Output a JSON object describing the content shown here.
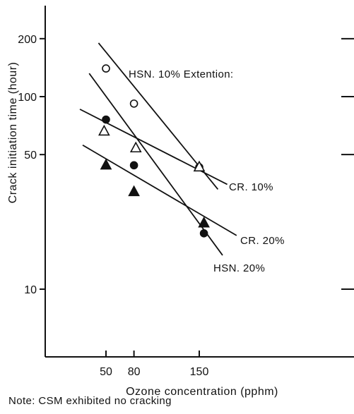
{
  "chart_data": {
    "type": "line",
    "title": "",
    "xlabel": "Ozone concentration (pphm)",
    "ylabel": "Crack initiation time (hour)",
    "y_scale": "log",
    "ylim": [
      5,
      300
    ],
    "xlim": [
      20,
      230
    ],
    "x_ticks": [
      50,
      80,
      150
    ],
    "y_ticks": [
      10,
      50,
      100,
      200
    ],
    "grid": false,
    "series": [
      {
        "name": "HSN. 10% Extention:",
        "marker": "open-circle",
        "x": [
          50,
          80,
          150
        ],
        "y": [
          140,
          92,
          43
        ],
        "fit": [
          [
            42,
            190
          ],
          [
            170,
            33
          ]
        ]
      },
      {
        "name": "CR. 10%",
        "marker": "open-triangle",
        "x": [
          48,
          82,
          150
        ],
        "y": [
          66,
          54,
          43
        ],
        "fit": [
          [
            22,
            86
          ],
          [
            180,
            35
          ]
        ]
      },
      {
        "name": "CR. 20%",
        "marker": "filled-triangle",
        "x": [
          50,
          80,
          155
        ],
        "y": [
          44,
          32,
          22
        ],
        "fit": [
          [
            25,
            56
          ],
          [
            190,
            19
          ]
        ]
      },
      {
        "name": "HSN. 20%",
        "marker": "filled-circle",
        "x": [
          50,
          80,
          155
        ],
        "y": [
          76,
          44,
          19.5
        ],
        "fit": [
          [
            32,
            132
          ],
          [
            175,
            15
          ]
        ]
      }
    ]
  },
  "note": "Note: CSM exhibited no cracking"
}
